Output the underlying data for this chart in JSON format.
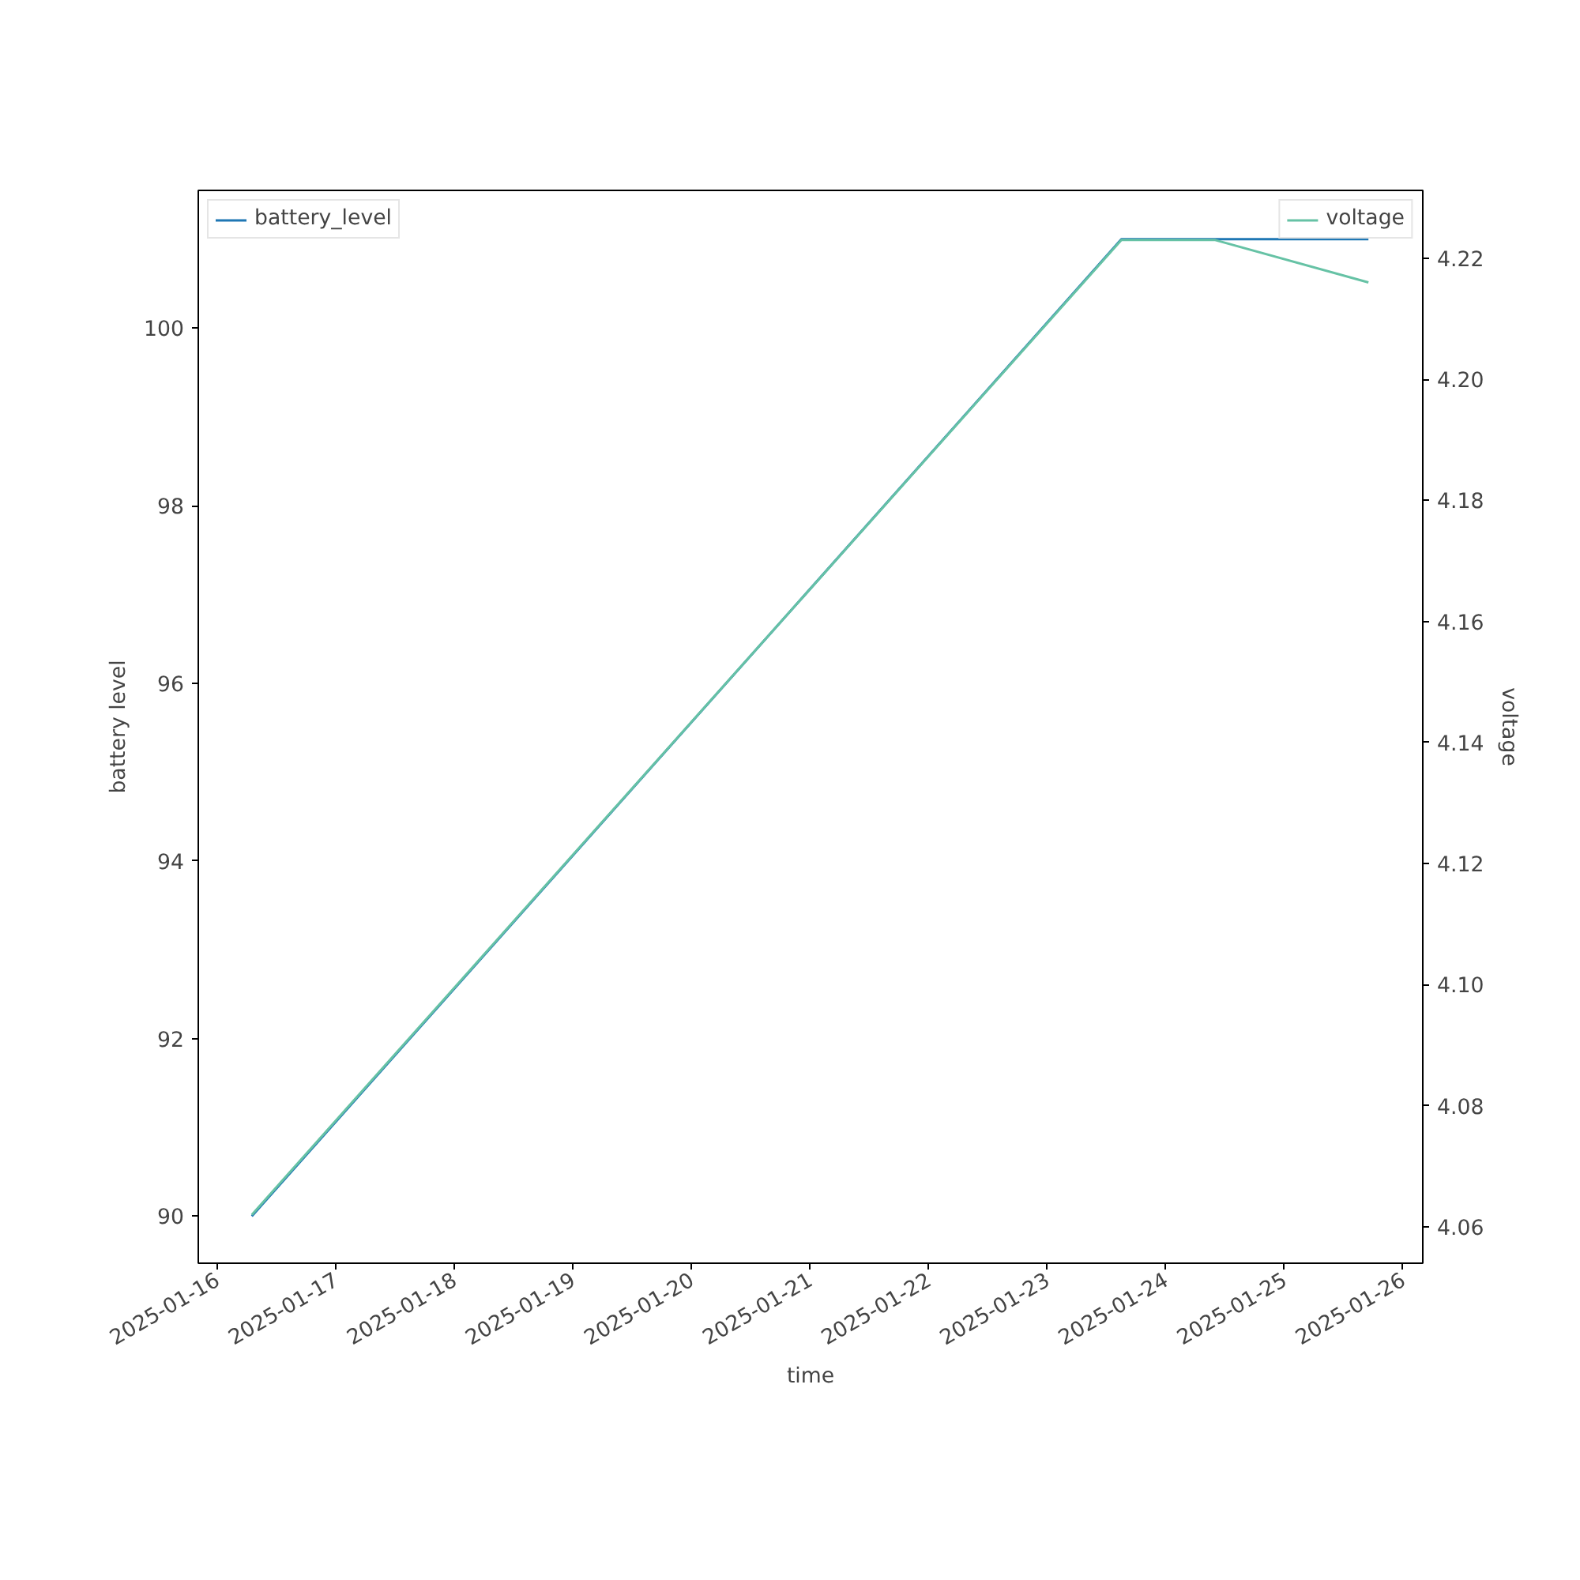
{
  "chart_data": {
    "type": "line",
    "xlabel": "time",
    "ylabel": "battery level",
    "y2label": "voltage",
    "x": [
      "2025-01-16T07:00",
      "2025-01-23T15:00",
      "2025-01-24T10:00",
      "2025-01-25T17:00"
    ],
    "series": [
      {
        "name": "battery_level",
        "color": "#1f77b4",
        "values": [
          90,
          101,
          101,
          101
        ]
      },
      {
        "name": "voltage",
        "color": "#66c2a5",
        "values": [
          4.062,
          4.223,
          4.223,
          4.216
        ],
        "axis": "y2"
      }
    ],
    "xlim": [
      "2025-01-15T20:10",
      "2025-01-26T04:00"
    ],
    "xticks": [
      "2025-01-16",
      "2025-01-17",
      "2025-01-18",
      "2025-01-19",
      "2025-01-20",
      "2025-01-21",
      "2025-01-22",
      "2025-01-23",
      "2025-01-24",
      "2025-01-25",
      "2025-01-26"
    ],
    "ylim": [
      89.47,
      101.55
    ],
    "yticks": [
      90,
      92,
      94,
      96,
      98,
      100
    ],
    "y2lim": [
      4.054,
      4.2312
    ],
    "y2ticks": [
      4.06,
      4.08,
      {
        "value": 4.1,
        "label": "4.10"
      },
      4.12,
      4.14,
      4.16,
      4.18,
      {
        "value": 4.2,
        "label": "4.20"
      },
      4.22
    ],
    "legend": "top",
    "grid": false,
    "line_style": "solid",
    "marker": "none"
  }
}
